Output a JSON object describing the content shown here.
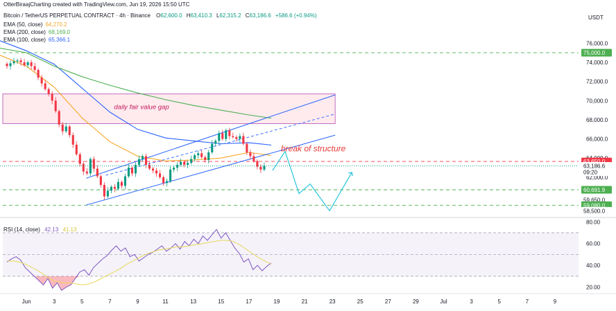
{
  "header": {
    "credit": "OtterBiraajCharting created with TradingView.com, Jun 19, 2026 15:50 UTC",
    "symbol": "Bitcoin / TetherUS PERPETUAL CONTRACT · 4h · Binance",
    "o_label": "O",
    "o": "62,600.0",
    "h_label": "H",
    "h": "63,410.3",
    "l_label": "L",
    "l": "62,315.2",
    "c_label": "C",
    "c": "63,186.6",
    "change": "+586.6 (+0.94%)",
    "currency": "USDT",
    "up_color": "#089981",
    "down_color": "#f23645"
  },
  "legend": [
    {
      "label": "EMA (50, close)",
      "value": "64,270.2",
      "color": "#f5a623"
    },
    {
      "label": "EMA (200, close)",
      "value": "68,169.0",
      "color": "#4caf50"
    },
    {
      "label": "EMA (100, close)",
      "value": "65,366.1",
      "color": "#2962ff"
    }
  ],
  "annotations": {
    "fvg": "daily fair value gap",
    "bos": "break of structure"
  },
  "price_badges": [
    {
      "text": "75,000.0",
      "price": 75000,
      "bg": "#4caf50",
      "fg": "#ffffff"
    },
    {
      "text": "63,650.0",
      "price": 63650,
      "bg": "#f23645",
      "fg": "#ffffff"
    },
    {
      "text": "63,186.6",
      "sub": "09:20",
      "price": 63186.6,
      "bg": "#ffffff",
      "fg": "#131722"
    },
    {
      "text": "60,691.9",
      "price": 60691.9,
      "bg": "#4caf50",
      "fg": "#ffffff"
    },
    {
      "text": "59,650.0",
      "price": 59650,
      "bg": "#ffffff",
      "fg": "#131722"
    },
    {
      "text": "59,080.0",
      "price": 59080,
      "bg": "#4caf50",
      "fg": "#ffffff"
    },
    {
      "text": "58,500.0",
      "price": 58500,
      "bg": "#ffffff",
      "fg": "#131722"
    }
  ],
  "rsi": {
    "label": "RSI (14, close)",
    "value": "42.13",
    "ma_value": "41.13",
    "line_color": "#7e57c2",
    "ma_color": "#e8d85a",
    "ticks": [
      "80.00",
      "60.00",
      "40.00",
      "20.00"
    ]
  },
  "chart_data": {
    "type": "candlestick",
    "title": "Bitcoin / TetherUS PERPETUAL CONTRACT · 4h · Binance",
    "timeframe": "4h",
    "y_ticks": [
      76000,
      74000,
      72000,
      70000,
      68000,
      66000,
      64000,
      62000
    ],
    "y_tick_labels": [
      "76,000.0",
      "74,000.0",
      "72,000.0",
      "70,000.0",
      "68,000.0",
      "66,000.0",
      "64,000.0",
      "62,000.0"
    ],
    "ylim": [
      57800,
      77900
    ],
    "x_tick_labels": [
      "Jun",
      "3",
      "5",
      "7",
      "9",
      "11",
      "13",
      "15",
      "17",
      "19",
      "21",
      "23",
      "25",
      "27",
      "29",
      "Jul",
      "3",
      "5",
      "7",
      "9"
    ],
    "x_tick_days": [
      1,
      3,
      5,
      7,
      9,
      11,
      13,
      15,
      17,
      19,
      21,
      23,
      25,
      27,
      29,
      31,
      33,
      35,
      37,
      39
    ],
    "xlim_days": [
      -0.9,
      40.7
    ],
    "closes": [
      73600,
      73900,
      74100,
      74200,
      74000,
      73700,
      74000,
      73600,
      73200,
      72400,
      71800,
      71200,
      70700,
      70000,
      68900,
      67500,
      66800,
      67300,
      66400,
      65400,
      64400,
      63400,
      62600,
      62400,
      63900,
      62900,
      62100,
      61200,
      60000,
      60600,
      61000,
      60800,
      61500,
      61100,
      62100,
      63000,
      62400,
      63300,
      63900,
      64200,
      63300,
      62900,
      62700,
      62400,
      62000,
      61400,
      61600,
      62800,
      63000,
      63300,
      63600,
      63300,
      63500,
      63900,
      64300,
      64500,
      64100,
      63800,
      64600,
      65500,
      65800,
      66600,
      66000,
      66900,
      66300,
      66200,
      66000,
      66300,
      65500,
      64600,
      64200,
      63700,
      63100,
      62800,
      63186.6
    ],
    "series": [
      {
        "name": "EMA (50, close)",
        "color": "#f5a623",
        "last": 64270.2,
        "points": [
          [
            -1,
            74800
          ],
          [
            1,
            73600
          ],
          [
            3,
            71400
          ],
          [
            5,
            68200
          ],
          [
            7,
            65700
          ],
          [
            9,
            64200
          ],
          [
            11,
            63700
          ],
          [
            13,
            63800
          ],
          [
            15,
            64000
          ],
          [
            17,
            64600
          ],
          [
            18.6,
            64270.2
          ]
        ]
      },
      {
        "name": "EMA (100, close)",
        "color": "#2962ff",
        "last": 65366.1,
        "points": [
          [
            -1,
            76300
          ],
          [
            1,
            75200
          ],
          [
            3,
            73800
          ],
          [
            5,
            71300
          ],
          [
            7,
            68800
          ],
          [
            9,
            67000
          ],
          [
            11,
            66100
          ],
          [
            13,
            65800
          ],
          [
            15,
            65500
          ],
          [
            17,
            65600
          ],
          [
            18.6,
            65366.1
          ]
        ]
      },
      {
        "name": "EMA (200, close)",
        "color": "#4caf50",
        "last": 68169.0,
        "points": [
          [
            -1,
            75500
          ],
          [
            1,
            75000
          ],
          [
            3,
            73600
          ],
          [
            5,
            72500
          ],
          [
            7,
            71600
          ],
          [
            9,
            70800
          ],
          [
            11,
            70100
          ],
          [
            13,
            69500
          ],
          [
            15,
            69000
          ],
          [
            17,
            68500
          ],
          [
            18.6,
            68169.0
          ]
        ]
      }
    ],
    "lines": {
      "upper_channel": [
        [
          5.3,
          61900
        ],
        [
          23.2,
          70600
        ]
      ],
      "mid_channel": [
        [
          6.7,
          62200
        ],
        [
          23.2,
          68600
        ]
      ],
      "lower_channel": [
        [
          5.3,
          59100
        ],
        [
          23.2,
          66400
        ]
      ],
      "projection": [
        [
          18.7,
          62700
        ],
        [
          19.6,
          64700
        ],
        [
          20.6,
          60300
        ],
        [
          21.4,
          61300
        ],
        [
          22.8,
          58500
        ],
        [
          24.4,
          62500
        ]
      ]
    },
    "fvg_zone": [
      67600,
      70700
    ],
    "hlines": [
      {
        "price": 75000,
        "color": "#4caf50"
      },
      {
        "price": 63650,
        "color": "#f23645"
      },
      {
        "price": 60691.9,
        "color": "#4caf50"
      },
      {
        "price": 59080,
        "color": "#4caf50"
      }
    ],
    "rsi_ylim": [
      14,
      84
    ],
    "rsi_ticks": [
      80,
      60,
      40,
      20
    ],
    "rsi_levels": [
      70,
      50,
      30
    ],
    "rsi_values": [
      43,
      46,
      48,
      45,
      38,
      34,
      30,
      26,
      22,
      28,
      19,
      24,
      17,
      20,
      22,
      28,
      34,
      36,
      31,
      38,
      42,
      46,
      49,
      54,
      58,
      53,
      56,
      48,
      50,
      44,
      47,
      50,
      52,
      55,
      58,
      53,
      56,
      60,
      55,
      62,
      58,
      64,
      60,
      67,
      63,
      68,
      73,
      65,
      70,
      63,
      56,
      51,
      43,
      46,
      36,
      40,
      35,
      39,
      42.13
    ],
    "rsi_ma": [
      44,
      44,
      43,
      41,
      38,
      35,
      31,
      27,
      25,
      24,
      24,
      23,
      22,
      23,
      25,
      28,
      31,
      34,
      37,
      41,
      44,
      47,
      50,
      52,
      54,
      55,
      56,
      57,
      57,
      58,
      59,
      60,
      61,
      62,
      63,
      63,
      62,
      59,
      55,
      51,
      47,
      44,
      41.13
    ]
  }
}
